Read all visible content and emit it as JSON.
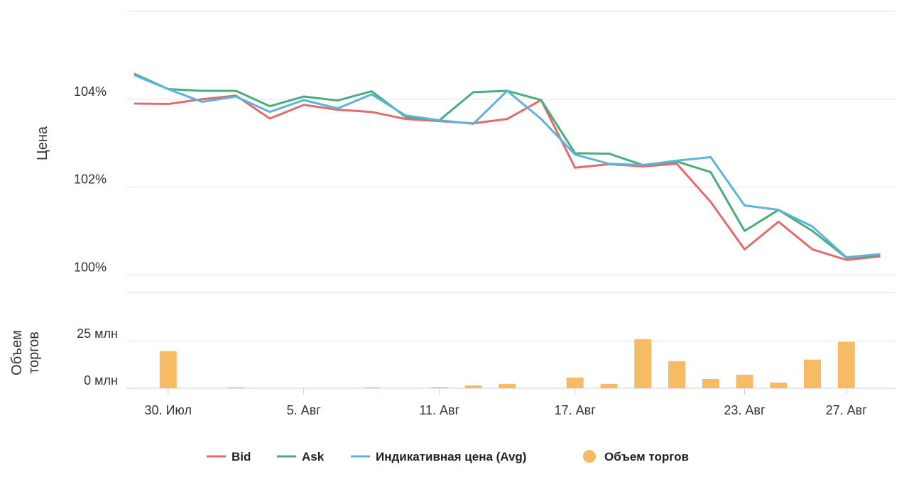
{
  "chart_data": {
    "type": "line",
    "ylabel": "Цена",
    "y2label": "Объем торгов",
    "categories": [
      null,
      "30. Июл",
      null,
      null,
      null,
      "5. Авг",
      null,
      null,
      null,
      "11. Авг",
      null,
      null,
      null,
      "17. Авг",
      null,
      null,
      null,
      null,
      "23. Авг",
      null,
      null,
      "27. Авг",
      null
    ],
    "ylim": [
      99.6,
      106
    ],
    "yticks": [
      {
        "value": 100,
        "label": "100%"
      },
      {
        "value": 102,
        "label": "102%"
      },
      {
        "value": 104,
        "label": "104%"
      }
    ],
    "y2lim": [
      0,
      40
    ],
    "y2ticks": [
      {
        "value": 0,
        "label": "0 млн"
      },
      {
        "value": 25,
        "label": "25 млн"
      }
    ],
    "grid": true,
    "legend": "bottom",
    "series": [
      {
        "name": "Bid",
        "color": "#e26b6b",
        "values": [
          103.9,
          103.89,
          104.0,
          104.08,
          103.56,
          103.87,
          103.76,
          103.71,
          103.55,
          103.5,
          103.45,
          103.55,
          103.98,
          102.44,
          102.52,
          102.47,
          102.53,
          101.66,
          100.58,
          101.21,
          100.58,
          100.34,
          100.42
        ]
      },
      {
        "name": "Ask",
        "color": "#4aad7b",
        "values": [
          104.58,
          104.23,
          104.19,
          104.19,
          103.84,
          104.06,
          103.97,
          104.18,
          103.6,
          103.52,
          104.16,
          104.19,
          103.98,
          102.77,
          102.76,
          102.5,
          102.58,
          102.34,
          101.0,
          101.48,
          101.0,
          100.39,
          100.45
        ]
      },
      {
        "name": "Индикативная цена (Avg)",
        "color": "#5db3da",
        "values": [
          104.55,
          104.23,
          103.94,
          104.06,
          103.71,
          103.98,
          103.79,
          104.11,
          103.63,
          103.52,
          103.44,
          104.19,
          103.55,
          102.74,
          102.53,
          102.5,
          102.6,
          102.68,
          101.58,
          101.48,
          101.1,
          100.4,
          100.47
        ]
      },
      {
        "name": "Объем торгов",
        "type": "bar",
        "axis": "y2",
        "color": "#f6bb63",
        "values": [
          0,
          19.7,
          0,
          0.5,
          0,
          0,
          0,
          0.5,
          0,
          0.6,
          1.5,
          2.3,
          0,
          5.7,
          2.3,
          26.1,
          14.4,
          4.9,
          7.2,
          3.0,
          15.2,
          24.6,
          0
        ]
      }
    ]
  }
}
